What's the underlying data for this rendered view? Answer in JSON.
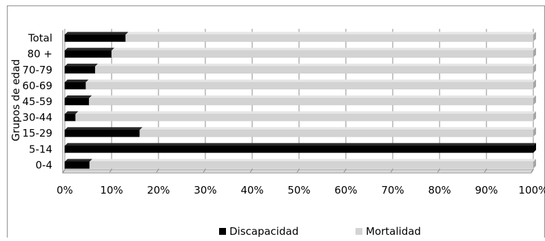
{
  "chart_data": {
    "type": "bar",
    "orientation": "horizontal",
    "stacked": "percent",
    "title": "",
    "xlabel": "",
    "ylabel": "Grupos de edad",
    "categories": [
      "Total",
      "80 +",
      "70-79",
      "60-69",
      "45-59",
      "30-44",
      "15-29",
      "5-14",
      "0-4"
    ],
    "series": [
      {
        "name": "Discapacidad",
        "color": "#000000",
        "values": [
          13,
          10,
          6.5,
          4.5,
          5.2,
          2.3,
          16,
          100,
          5.3
        ]
      },
      {
        "name": "Mortalidad",
        "color": "#d3d3d3",
        "values": [
          87,
          90,
          93.5,
          95.5,
          94.8,
          97.7,
          84,
          0,
          94.7
        ]
      }
    ],
    "xlim": [
      0,
      100
    ],
    "xticks": [
      "0%",
      "10%",
      "20%",
      "30%",
      "40%",
      "50%",
      "60%",
      "70%",
      "80%",
      "90%",
      "100%"
    ],
    "grid": "vertical",
    "legend_position": "bottom"
  }
}
